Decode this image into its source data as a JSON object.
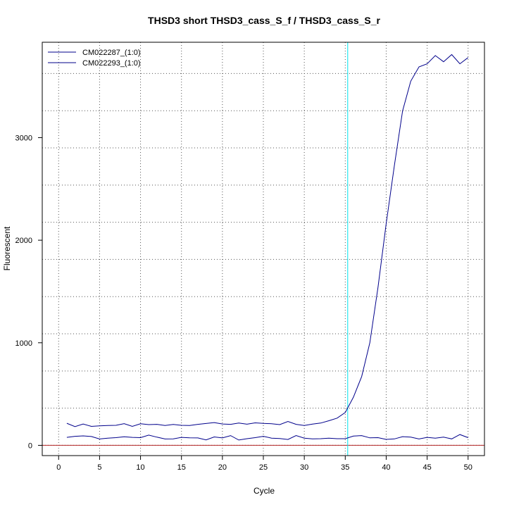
{
  "chart_data": {
    "type": "line",
    "title": "THSD3 short THSD3_cass_S_f / THSD3_cass_S_r",
    "xlabel": "Cycle",
    "ylabel": "Fluorescent",
    "xlim": [
      -2,
      52
    ],
    "ylim": [
      -100,
      3930
    ],
    "x_ticks": [
      0,
      5,
      10,
      15,
      20,
      25,
      30,
      35,
      40,
      45,
      50
    ],
    "y_ticks": [
      0,
      1000,
      2000,
      3000
    ],
    "grid": true,
    "legend_position": "top-left",
    "threshold_line": {
      "x": 35.3,
      "color": "#00e5ee"
    },
    "baseline": {
      "y": 0,
      "color": "#b22222"
    },
    "x": [
      1,
      2,
      3,
      4,
      5,
      6,
      7,
      8,
      9,
      10,
      11,
      12,
      13,
      14,
      15,
      16,
      17,
      18,
      19,
      20,
      21,
      22,
      23,
      24,
      25,
      26,
      27,
      28,
      29,
      30,
      31,
      32,
      33,
      34,
      35,
      36,
      37,
      38,
      39,
      40,
      41,
      42,
      43,
      44,
      45,
      46,
      47,
      48,
      49,
      50
    ],
    "series": [
      {
        "name": "CM022287_(1:0)",
        "color": "#00008b",
        "values": [
          215,
          183,
          208,
          185,
          190,
          194,
          195,
          212,
          185,
          210,
          202,
          205,
          193,
          204,
          195,
          194,
          205,
          213,
          222,
          208,
          205,
          217,
          206,
          219,
          214,
          211,
          202,
          233,
          205,
          193,
          207,
          217,
          240,
          265,
          320,
          470,
          670,
          1000,
          1540,
          2160,
          2730,
          3260,
          3550,
          3690,
          3720,
          3800,
          3740,
          3810,
          3720,
          3780
        ]
      },
      {
        "name": "CM022293_(1:0)",
        "color": "#00008b",
        "values": [
          78,
          88,
          92,
          86,
          62,
          70,
          75,
          84,
          78,
          75,
          100,
          80,
          62,
          63,
          78,
          73,
          72,
          53,
          82,
          72,
          95,
          52,
          65,
          75,
          88,
          70,
          67,
          57,
          96,
          70,
          63,
          65,
          70,
          65,
          65,
          90,
          95,
          73,
          75,
          58,
          63,
          85,
          80,
          62,
          78,
          70,
          80,
          63,
          105,
          75
        ]
      }
    ]
  }
}
